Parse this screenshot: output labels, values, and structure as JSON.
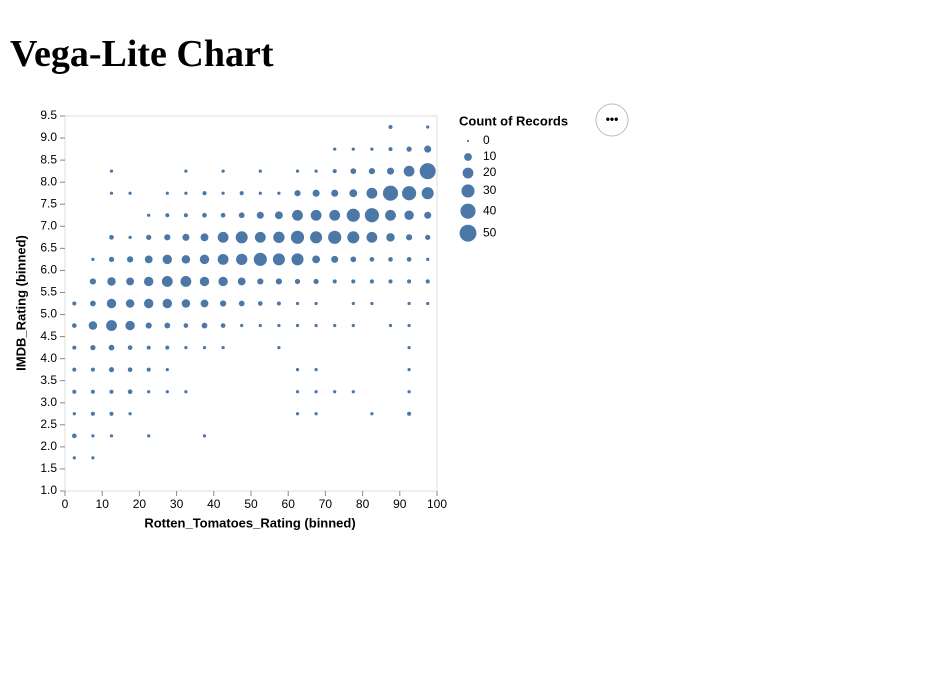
{
  "page_title": "Vega-Lite Chart",
  "actions_button": "•••",
  "chart_data": {
    "type": "scatter",
    "x_label": "Rotten_Tomatoes_Rating (binned)",
    "y_label": "IMDB_Rating (binned)",
    "color": "#4c78a8",
    "xlim": [
      0,
      100
    ],
    "ylim": [
      1,
      9.5
    ],
    "xticks": [
      0,
      10,
      20,
      30,
      40,
      50,
      60,
      70,
      80,
      90,
      100
    ],
    "yticks": [
      {
        "value": 1,
        "label": "1.0"
      },
      1.5,
      {
        "value": 2,
        "label": "2.0"
      },
      2.5,
      {
        "value": 3,
        "label": "3.0"
      },
      3.5,
      {
        "value": 4,
        "label": "4.0"
      },
      4.5,
      {
        "value": 5,
        "label": "5.0"
      },
      5.5,
      {
        "value": 6,
        "label": "6.0"
      },
      6.5,
      {
        "value": 7,
        "label": "7.0"
      },
      7.5,
      {
        "value": 8,
        "label": "8.0"
      },
      8.5,
      {
        "value": 9,
        "label": "9.0"
      },
      9.5
    ],
    "size_legend": {
      "title": "Count of Records",
      "values": [
        0,
        10,
        20,
        30,
        40,
        50
      ]
    },
    "x": [
      87.5,
      97.5,
      72.5,
      77.5,
      82.5,
      87.5,
      92.5,
      97.5,
      12.5,
      32.5,
      42.5,
      52.5,
      62.5,
      67.5,
      72.5,
      77.5,
      82.5,
      87.5,
      92.5,
      97.5,
      12.5,
      17.5,
      27.5,
      32.5,
      37.5,
      42.5,
      47.5,
      52.5,
      57.5,
      62.5,
      67.5,
      72.5,
      77.5,
      82.5,
      87.5,
      92.5,
      97.5,
      22.5,
      27.5,
      32.5,
      37.5,
      42.5,
      47.5,
      52.5,
      57.5,
      62.5,
      67.5,
      72.5,
      77.5,
      82.5,
      87.5,
      92.5,
      97.5,
      12.5,
      17.5,
      22.5,
      27.5,
      32.5,
      37.5,
      42.5,
      47.5,
      52.5,
      57.5,
      62.5,
      67.5,
      72.5,
      77.5,
      82.5,
      87.5,
      92.5,
      97.5,
      7.5,
      12.5,
      17.5,
      22.5,
      27.5,
      32.5,
      37.5,
      42.5,
      47.5,
      52.5,
      57.5,
      62.5,
      67.5,
      72.5,
      77.5,
      82.5,
      87.5,
      92.5,
      97.5,
      7.5,
      12.5,
      17.5,
      22.5,
      27.5,
      32.5,
      37.5,
      42.5,
      47.5,
      52.5,
      57.5,
      62.5,
      67.5,
      72.5,
      77.5,
      82.5,
      87.5,
      92.5,
      97.5,
      2.5,
      7.5,
      12.5,
      17.5,
      22.5,
      27.5,
      32.5,
      37.5,
      42.5,
      47.5,
      52.5,
      57.5,
      62.5,
      67.5,
      77.5,
      82.5,
      92.5,
      97.5,
      2.5,
      7.5,
      12.5,
      17.5,
      22.5,
      27.5,
      32.5,
      37.5,
      42.5,
      47.5,
      52.5,
      57.5,
      62.5,
      67.5,
      72.5,
      77.5,
      87.5,
      92.5,
      2.5,
      7.5,
      12.5,
      17.5,
      22.5,
      27.5,
      32.5,
      37.5,
      42.5,
      57.5,
      92.5,
      2.5,
      7.5,
      12.5,
      17.5,
      22.5,
      27.5,
      62.5,
      67.5,
      92.5,
      2.5,
      7.5,
      12.5,
      17.5,
      22.5,
      27.5,
      32.5,
      62.5,
      67.5,
      72.5,
      77.5,
      92.5,
      2.5,
      7.5,
      12.5,
      17.5,
      62.5,
      67.5,
      82.5,
      92.5,
      2.5,
      7.5,
      12.5,
      22.5,
      37.5,
      2.5,
      7.5
    ],
    "y": [
      9.25,
      9.25,
      8.75,
      8.75,
      8.75,
      8.75,
      8.75,
      8.75,
      8.25,
      8.25,
      8.25,
      8.25,
      8.25,
      8.25,
      8.25,
      8.25,
      8.25,
      8.25,
      8.25,
      8.25,
      7.75,
      7.75,
      7.75,
      7.75,
      7.75,
      7.75,
      7.75,
      7.75,
      7.75,
      7.75,
      7.75,
      7.75,
      7.75,
      7.75,
      7.75,
      7.75,
      7.75,
      7.25,
      7.25,
      7.25,
      7.25,
      7.25,
      7.25,
      7.25,
      7.25,
      7.25,
      7.25,
      7.25,
      7.25,
      7.25,
      7.25,
      7.25,
      7.25,
      6.75,
      6.75,
      6.75,
      6.75,
      6.75,
      6.75,
      6.75,
      6.75,
      6.75,
      6.75,
      6.75,
      6.75,
      6.75,
      6.75,
      6.75,
      6.75,
      6.75,
      6.75,
      6.25,
      6.25,
      6.25,
      6.25,
      6.25,
      6.25,
      6.25,
      6.25,
      6.25,
      6.25,
      6.25,
      6.25,
      6.25,
      6.25,
      6.25,
      6.25,
      6.25,
      6.25,
      6.25,
      5.75,
      5.75,
      5.75,
      5.75,
      5.75,
      5.75,
      5.75,
      5.75,
      5.75,
      5.75,
      5.75,
      5.75,
      5.75,
      5.75,
      5.75,
      5.75,
      5.75,
      5.75,
      5.75,
      5.25,
      5.25,
      5.25,
      5.25,
      5.25,
      5.25,
      5.25,
      5.25,
      5.25,
      5.25,
      5.25,
      5.25,
      5.25,
      5.25,
      5.25,
      5.25,
      5.25,
      5.25,
      4.75,
      4.75,
      4.75,
      4.75,
      4.75,
      4.75,
      4.75,
      4.75,
      4.75,
      4.75,
      4.75,
      4.75,
      4.75,
      4.75,
      4.75,
      4.75,
      4.75,
      4.75,
      4.25,
      4.25,
      4.25,
      4.25,
      4.25,
      4.25,
      4.25,
      4.25,
      4.25,
      4.25,
      4.25,
      3.75,
      3.75,
      3.75,
      3.75,
      3.75,
      3.75,
      3.75,
      3.75,
      3.75,
      3.25,
      3.25,
      3.25,
      3.25,
      3.25,
      3.25,
      3.25,
      3.25,
      3.25,
      3.25,
      3.25,
      3.25,
      2.75,
      2.75,
      2.75,
      2.75,
      2.75,
      2.75,
      2.75,
      2.75,
      2.25,
      2.25,
      2.25,
      2.25,
      2.25,
      1.75,
      1.75
    ],
    "size": [
      2,
      1,
      1,
      1,
      1,
      2,
      4,
      8,
      1,
      1,
      1,
      1,
      1,
      1,
      2,
      5,
      6,
      8,
      20,
      45,
      1,
      1,
      1,
      1,
      2,
      1,
      2,
      1,
      1,
      6,
      8,
      8,
      10,
      20,
      40,
      35,
      25,
      1,
      2,
      2,
      3,
      3,
      5,
      8,
      10,
      20,
      20,
      20,
      30,
      35,
      20,
      15,
      8,
      3,
      1,
      4,
      6,
      8,
      10,
      20,
      25,
      20,
      22,
      30,
      25,
      30,
      25,
      20,
      12,
      6,
      4,
      1,
      4,
      6,
      10,
      15,
      12,
      15,
      20,
      22,
      30,
      25,
      25,
      10,
      8,
      5,
      3,
      3,
      3,
      1,
      6,
      12,
      10,
      15,
      20,
      20,
      15,
      15,
      10,
      6,
      6,
      4,
      4,
      2,
      2,
      2,
      2,
      2,
      2,
      2,
      5,
      15,
      12,
      15,
      15,
      12,
      10,
      6,
      5,
      3,
      2,
      1,
      1,
      1,
      1,
      1,
      1,
      3,
      12,
      20,
      15,
      6,
      5,
      3,
      5,
      3,
      1,
      1,
      1,
      1,
      1,
      1,
      1,
      1,
      1,
      2,
      4,
      5,
      3,
      2,
      2,
      1,
      1,
      1,
      1,
      1,
      2,
      2,
      4,
      3,
      2,
      1,
      1,
      1,
      1,
      2,
      2,
      2,
      3,
      1,
      1,
      1,
      1,
      1,
      1,
      1,
      1,
      1,
      2,
      2,
      1,
      1,
      1,
      1,
      2,
      3,
      1,
      1,
      1,
      1,
      1,
      1
    ]
  }
}
